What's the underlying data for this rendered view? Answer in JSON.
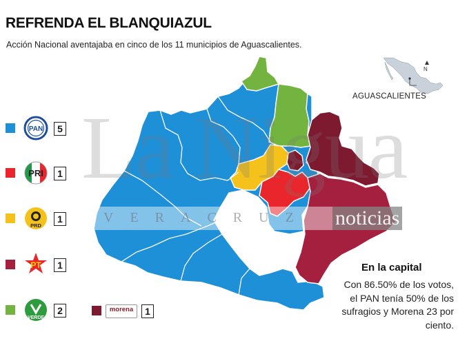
{
  "header": {
    "title": "REFRENDA EL BLANQUIAZUL",
    "subtitle": "Acción Nacional aventajaba en cinco de los 11 municipios de Aguascalientes."
  },
  "legend": [
    {
      "party": "PAN",
      "logo_text": "PAN",
      "count": "5",
      "color": "#1e90d8"
    },
    {
      "party": "PRI",
      "logo_text": "PRI",
      "count": "1",
      "color": "#e8262c"
    },
    {
      "party": "PRD",
      "logo_text": "PRD",
      "count": "1",
      "color": "#f5c21b"
    },
    {
      "party": "PT",
      "logo_text": "PT",
      "count": "1",
      "color": "#9b1d3a"
    },
    {
      "party": "VERDE",
      "logo_text": "VERDE",
      "count": "2",
      "color": "#6ab23b"
    },
    {
      "party": "Morena",
      "logo_text": "morena",
      "count": "1",
      "color": "#7a1a2e"
    }
  ],
  "map": {
    "colors": {
      "pan": "#1e90d8",
      "pri": "#e8262c",
      "prd": "#f5c21b",
      "pt": "#a5203f",
      "verde": "#72b43f",
      "morena": "#7d1a30",
      "border": "#ffffff"
    }
  },
  "inset": {
    "label": "AGUASCALIENTES",
    "north": "N"
  },
  "watermark": {
    "main": "La Nigua",
    "band": "VERACRUZ",
    "brand": "noticias"
  },
  "capital": {
    "title": "En la capital",
    "text": "Con 86.50% de los votos, el PAN tenía 50% de los sufragios y Morena 23 por ciento."
  }
}
